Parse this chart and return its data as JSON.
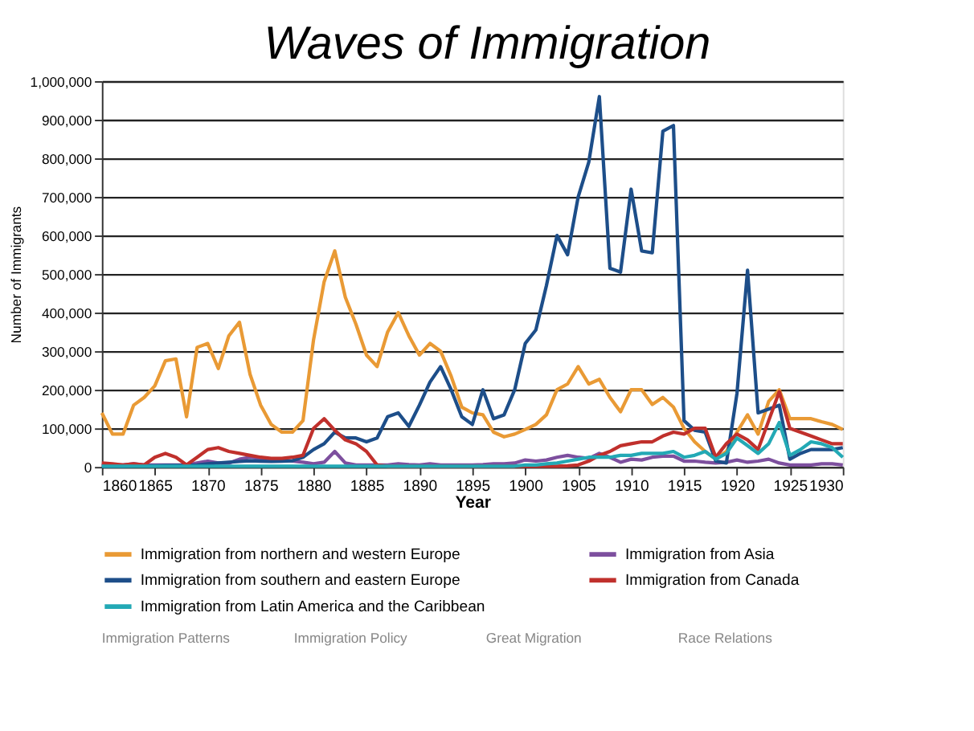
{
  "chart_data": {
    "type": "line",
    "title": "Waves of Immigration",
    "xlabel": "Year",
    "ylabel": "Number of Immigrants",
    "x": [
      1860,
      1861,
      1862,
      1863,
      1864,
      1865,
      1866,
      1867,
      1868,
      1869,
      1870,
      1871,
      1872,
      1873,
      1874,
      1875,
      1876,
      1877,
      1878,
      1879,
      1880,
      1881,
      1882,
      1883,
      1884,
      1885,
      1886,
      1887,
      1888,
      1889,
      1890,
      1891,
      1892,
      1893,
      1894,
      1895,
      1896,
      1897,
      1898,
      1899,
      1900,
      1901,
      1902,
      1903,
      1904,
      1905,
      1906,
      1907,
      1908,
      1909,
      1910,
      1911,
      1912,
      1913,
      1914,
      1915,
      1916,
      1917,
      1918,
      1919,
      1920,
      1921,
      1922,
      1923,
      1924,
      1925,
      1926,
      1927,
      1928,
      1929,
      1930
    ],
    "xlim": [
      1860,
      1930
    ],
    "xticks": [
      1860,
      1865,
      1870,
      1875,
      1880,
      1885,
      1890,
      1895,
      1900,
      1905,
      1910,
      1915,
      1920,
      1925,
      1930
    ],
    "ylim": [
      0,
      1000000
    ],
    "yticks": [
      {
        "value": 0,
        "label": "0"
      },
      {
        "value": 100000,
        "label": "100,000"
      },
      {
        "value": 200000,
        "label": "200,000"
      },
      {
        "value": 300000,
        "label": "300,000"
      },
      {
        "value": 400000,
        "label": "400,000"
      },
      {
        "value": 500000,
        "label": "500,000"
      },
      {
        "value": 600000,
        "label": "600,000"
      },
      {
        "value": 700000,
        "label": "700,000"
      },
      {
        "value": 800000,
        "label": "800,000"
      },
      {
        "value": 900000,
        "label": "900,000"
      },
      {
        "value": 1000000,
        "label": "1,000,000"
      }
    ],
    "grid": "y",
    "legend": "bottom",
    "marker": "none",
    "line_style": "solid",
    "series": [
      {
        "name": "Immigration from northern and western Europe",
        "color": "#e99a35",
        "values": [
          140000,
          85000,
          85000,
          160000,
          180000,
          210000,
          275000,
          280000,
          130000,
          310000,
          320000,
          255000,
          340000,
          375000,
          240000,
          160000,
          110000,
          90000,
          90000,
          120000,
          330000,
          480000,
          560000,
          440000,
          370000,
          290000,
          260000,
          350000,
          400000,
          340000,
          290000,
          320000,
          300000,
          235000,
          155000,
          140000,
          135000,
          90000,
          78000,
          85000,
          97000,
          110000,
          135000,
          200000,
          215000,
          260000,
          215000,
          227000,
          180000,
          143000,
          200000,
          200000,
          162000,
          180000,
          155000,
          100000,
          65000,
          40000,
          20000,
          40000,
          90000,
          135000,
          85000,
          170000,
          200000,
          125000,
          125000,
          125000,
          117000,
          110000,
          97000
        ]
      },
      {
        "name": "Immigration from Asia",
        "color": "#7d4f9e",
        "values": [
          3000,
          5000,
          5000,
          8000,
          5000,
          5000,
          5000,
          5000,
          5000,
          10000,
          15000,
          10000,
          10000,
          20000,
          25000,
          22000,
          20000,
          18000,
          15000,
          12000,
          8000,
          12000,
          40000,
          10000,
          5000,
          5000,
          5000,
          5000,
          8000,
          6000,
          5000,
          8000,
          5000,
          5000,
          5000,
          5000,
          6000,
          8000,
          8000,
          10000,
          18000,
          15000,
          18000,
          25000,
          30000,
          25000,
          22000,
          35000,
          25000,
          12000,
          20000,
          18000,
          25000,
          28000,
          28000,
          15000,
          15000,
          12000,
          10000,
          12000,
          18000,
          12000,
          15000,
          20000,
          10000,
          5000,
          5000,
          5000,
          8000,
          8000,
          5000
        ]
      },
      {
        "name": "Immigration from southern and eastern Europe",
        "color": "#1d4e89",
        "values": [
          2000,
          2000,
          2000,
          3000,
          3000,
          3000,
          4000,
          4000,
          4000,
          5000,
          8000,
          10000,
          12000,
          14000,
          16000,
          15000,
          14000,
          15000,
          16000,
          25000,
          45000,
          60000,
          90000,
          75000,
          75000,
          65000,
          75000,
          130000,
          140000,
          105000,
          160000,
          220000,
          260000,
          200000,
          130000,
          110000,
          200000,
          125000,
          135000,
          200000,
          320000,
          355000,
          470000,
          600000,
          550000,
          700000,
          790000,
          960000,
          515000,
          505000,
          720000,
          560000,
          555000,
          870000,
          885000,
          120000,
          95000,
          90000,
          15000,
          10000,
          190000,
          510000,
          140000,
          150000,
          160000,
          20000,
          35000,
          45000,
          45000,
          45000,
          50000
        ]
      },
      {
        "name": "Immigration from Canada",
        "color": "#c0302c",
        "values": [
          10000,
          8000,
          5000,
          8000,
          5000,
          25000,
          35000,
          25000,
          5000,
          25000,
          45000,
          50000,
          40000,
          35000,
          30000,
          25000,
          22000,
          22000,
          25000,
          30000,
          100000,
          125000,
          95000,
          70000,
          60000,
          40000,
          5000,
          2000,
          2000,
          2000,
          2000,
          2000,
          2000,
          2000,
          2000,
          2000,
          2000,
          2000,
          2000,
          2000,
          2000,
          2000,
          2000,
          2000,
          3000,
          5000,
          15000,
          30000,
          40000,
          55000,
          60000,
          65000,
          65000,
          80000,
          90000,
          85000,
          100000,
          100000,
          25000,
          60000,
          85000,
          70000,
          45000,
          120000,
          195000,
          100000,
          90000,
          80000,
          70000,
          60000,
          60000
        ]
      },
      {
        "name": "Immigration from Latin America and the Caribbean",
        "color": "#23a9b5",
        "values": [
          2000,
          2000,
          2000,
          2000,
          2000,
          2000,
          2000,
          2000,
          2000,
          2000,
          2000,
          2000,
          2000,
          2000,
          2000,
          2000,
          2000,
          2000,
          2000,
          2000,
          2000,
          2000,
          2000,
          2000,
          2000,
          2000,
          2000,
          2000,
          2000,
          2000,
          2000,
          2000,
          2000,
          2000,
          2000,
          2000,
          2000,
          2000,
          2000,
          2000,
          5000,
          5000,
          8000,
          10000,
          15000,
          20000,
          25000,
          25000,
          25000,
          30000,
          30000,
          35000,
          35000,
          35000,
          40000,
          25000,
          30000,
          40000,
          20000,
          35000,
          75000,
          55000,
          35000,
          60000,
          115000,
          30000,
          45000,
          65000,
          60000,
          50000,
          25000
        ]
      }
    ],
    "annotations": [
      "Immigration Patterns",
      "Immigration Policy",
      "Great Migration",
      "Race Relations"
    ]
  }
}
